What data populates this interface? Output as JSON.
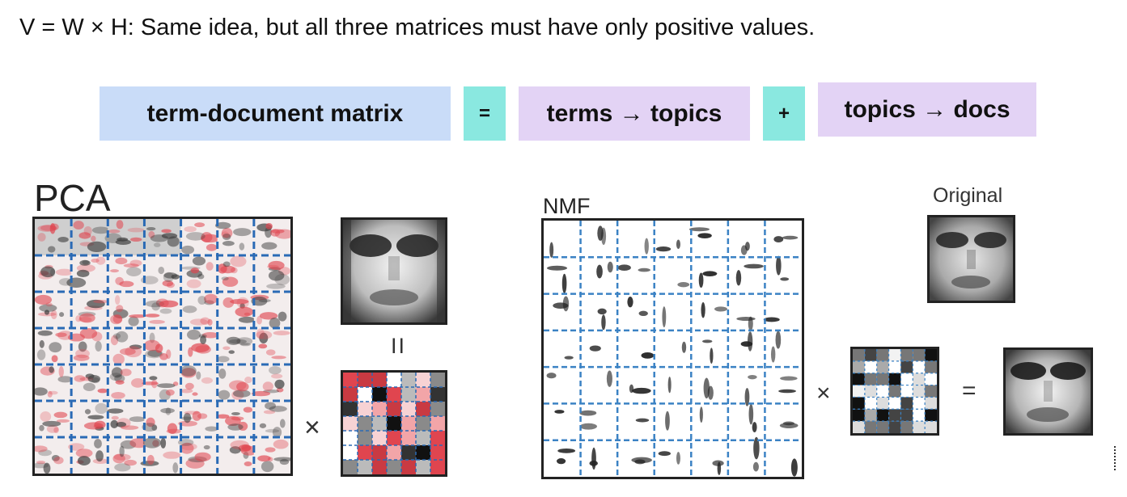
{
  "headline": "V = W × H: Same idea, but all three matrices must have only positive values.",
  "equation": {
    "matrix_label": "term-document matrix",
    "equals": "=",
    "terms_label": "terms → topics",
    "plus": "+",
    "topics_label": "topics → docs",
    "colors": {
      "blue": "#c9dcf8",
      "teal": "#8ae8e0",
      "lavender": "#e3d3f5"
    }
  },
  "pca": {
    "title": "PCA",
    "times": "×",
    "equals": "II",
    "grid_line_color": "#2a6ab5",
    "accent": "#e0454f"
  },
  "nmf": {
    "title": "NMF",
    "original_label": "Original",
    "times": "×",
    "equals": "=",
    "grid_line_color": "#3b82c4"
  }
}
